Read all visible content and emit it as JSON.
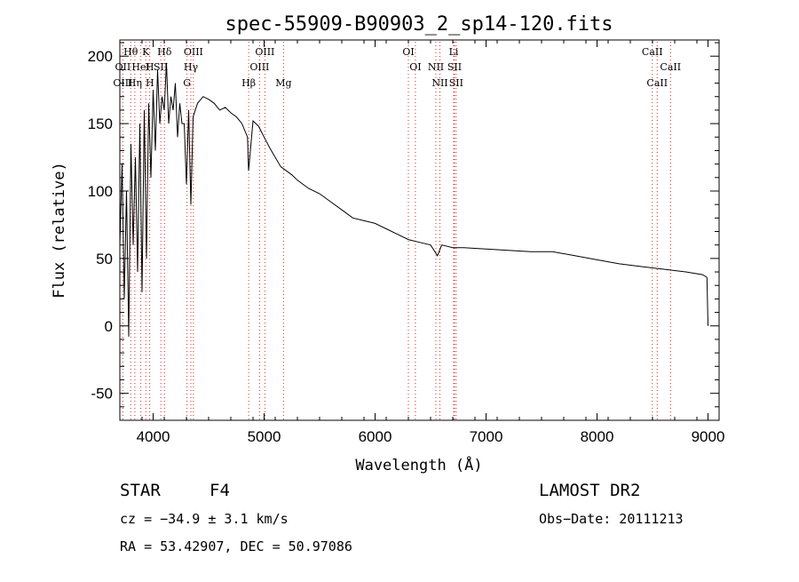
{
  "chart_data": {
    "type": "line",
    "title": "spec-55909-B90903_2_sp14-120.fits",
    "xlabel": "Wavelength (Å)",
    "ylabel": "Flux (relative)",
    "xlim": [
      3700,
      9100
    ],
    "ylim": [
      -70,
      212
    ],
    "xticks": [
      4000,
      5000,
      6000,
      7000,
      8000,
      9000
    ],
    "yticks": [
      -50,
      0,
      50,
      100,
      150,
      200
    ],
    "grid": false,
    "series": [
      {
        "x": [
          3700,
          3720,
          3740,
          3760,
          3780,
          3800,
          3820,
          3840,
          3860,
          3880,
          3900,
          3920,
          3940,
          3960,
          3980,
          4000,
          4020,
          4040,
          4060,
          4080,
          4100,
          4120,
          4140,
          4160,
          4180,
          4200,
          4220,
          4240,
          4260,
          4280,
          4300,
          4320,
          4340,
          4360,
          4380,
          4400,
          4450,
          4500,
          4550,
          4600,
          4650,
          4700,
          4750,
          4800,
          4850,
          4860,
          4900,
          4950,
          5000,
          5050,
          5100,
          5150,
          5200,
          5250,
          5300,
          5400,
          5500,
          5600,
          5700,
          5800,
          5900,
          6000,
          6100,
          6200,
          6300,
          6400,
          6500,
          6562,
          6600,
          6700,
          6800,
          7000,
          7200,
          7400,
          7600,
          7800,
          8000,
          8200,
          8400,
          8600,
          8800,
          8950,
          8990,
          9000
        ],
        "y": [
          60,
          120,
          20,
          100,
          -8,
          135,
          60,
          125,
          40,
          150,
          25,
          160,
          50,
          165,
          110,
          175,
          130,
          190,
          150,
          170,
          160,
          195,
          150,
          170,
          160,
          180,
          140,
          165,
          150,
          150,
          105,
          160,
          90,
          155,
          160,
          165,
          170,
          168,
          165,
          160,
          162,
          158,
          155,
          150,
          140,
          115,
          152,
          148,
          140,
          132,
          125,
          118,
          115,
          112,
          108,
          102,
          98,
          92,
          86,
          80,
          78,
          76,
          72,
          68,
          64,
          62,
          60,
          52,
          60,
          58,
          58,
          57,
          56,
          55,
          55,
          52,
          49,
          46,
          44,
          42,
          40,
          38,
          36,
          0
        ]
      }
    ]
  },
  "spectral_lines": {
    "top_row": [
      {
        "label": "Hθ",
        "x": 3798
      },
      {
        "label": "K",
        "x": 3934
      },
      {
        "label": "Hδ",
        "x": 4102
      },
      {
        "label": "OIII",
        "x": 4363
      },
      {
        "label": "OIII",
        "x": 5007
      },
      {
        "label": "OI",
        "x": 6300
      },
      {
        "label": "Li",
        "x": 6708
      },
      {
        "label": "CaII",
        "x": 8498
      }
    ],
    "mid_row": [
      {
        "label": "OII",
        "x": 3727
      },
      {
        "label": "HeI",
        "x": 3889
      },
      {
        "label": "H",
        "x": 3969
      },
      {
        "label": "SII",
        "x": 4069
      },
      {
        "label": "Hγ",
        "x": 4340
      },
      {
        "label": "OIII",
        "x": 4959
      },
      {
        "label": "OI",
        "x": 6363
      },
      {
        "label": "NII",
        "x": 6548
      },
      {
        "label": "SII",
        "x": 6716
      },
      {
        "label": "CaII",
        "x": 8662
      }
    ],
    "bot_row": [
      {
        "label": "OIII",
        "x": 3727
      },
      {
        "label": "Hη",
        "x": 3835
      },
      {
        "label": "H",
        "x": 3970
      },
      {
        "label": "G",
        "x": 4305
      },
      {
        "label": "Hβ",
        "x": 4861
      },
      {
        "label": "Mg",
        "x": 5175
      },
      {
        "label": "NII",
        "x": 6584
      },
      {
        "label": "SII",
        "x": 6731
      },
      {
        "label": "CaII",
        "x": 8542
      }
    ],
    "dotted_lines": [
      3727,
      3798,
      3835,
      3889,
      3934,
      3969,
      4069,
      4102,
      4305,
      4340,
      4363,
      4861,
      4959,
      5007,
      5175,
      6300,
      6363,
      6548,
      6584,
      6708,
      6716,
      6731,
      8498,
      8542,
      8662
    ]
  },
  "info": {
    "class_label": "STAR",
    "subclass": "F4",
    "survey": "LAMOST DR2",
    "cz": "cz = −34.9 ± 3.1 km/s",
    "obs_date": "Obs−Date: 20111213",
    "radec": "RA =  53.42907, DEC =  50.97086"
  },
  "colors": {
    "line_marker": "#d62728",
    "spectrum": "#000000"
  }
}
